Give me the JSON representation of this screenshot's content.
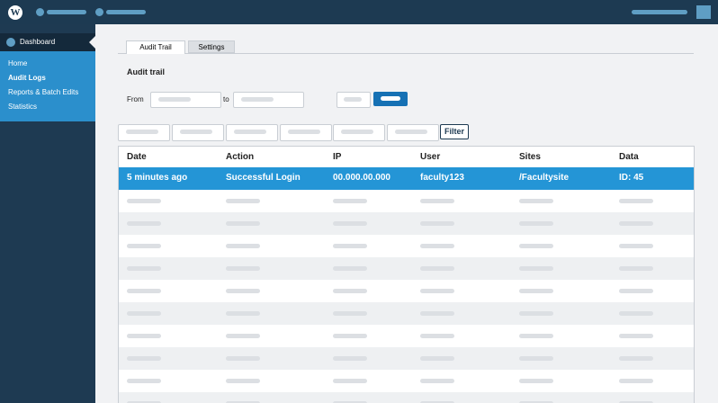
{
  "sidebar": {
    "dashboard": "Dashboard",
    "items": [
      "Home",
      "Audit Logs",
      "Reports & Batch Edits",
      "Statistics"
    ]
  },
  "tabs": [
    "Audit Trail",
    "Settings"
  ],
  "section_title": "Audit trail",
  "filters": {
    "from_label": "From",
    "to_label": "to",
    "filter_button": "Filter"
  },
  "table": {
    "columns": [
      "Date",
      "Action",
      "IP",
      "User",
      "Sites",
      "Data"
    ],
    "rows": [
      [
        "5 minutes ago",
        "Successful Login",
        "00.000.00.000",
        "faculty123",
        "/Facultysite",
        "ID: 45"
      ]
    ]
  }
}
